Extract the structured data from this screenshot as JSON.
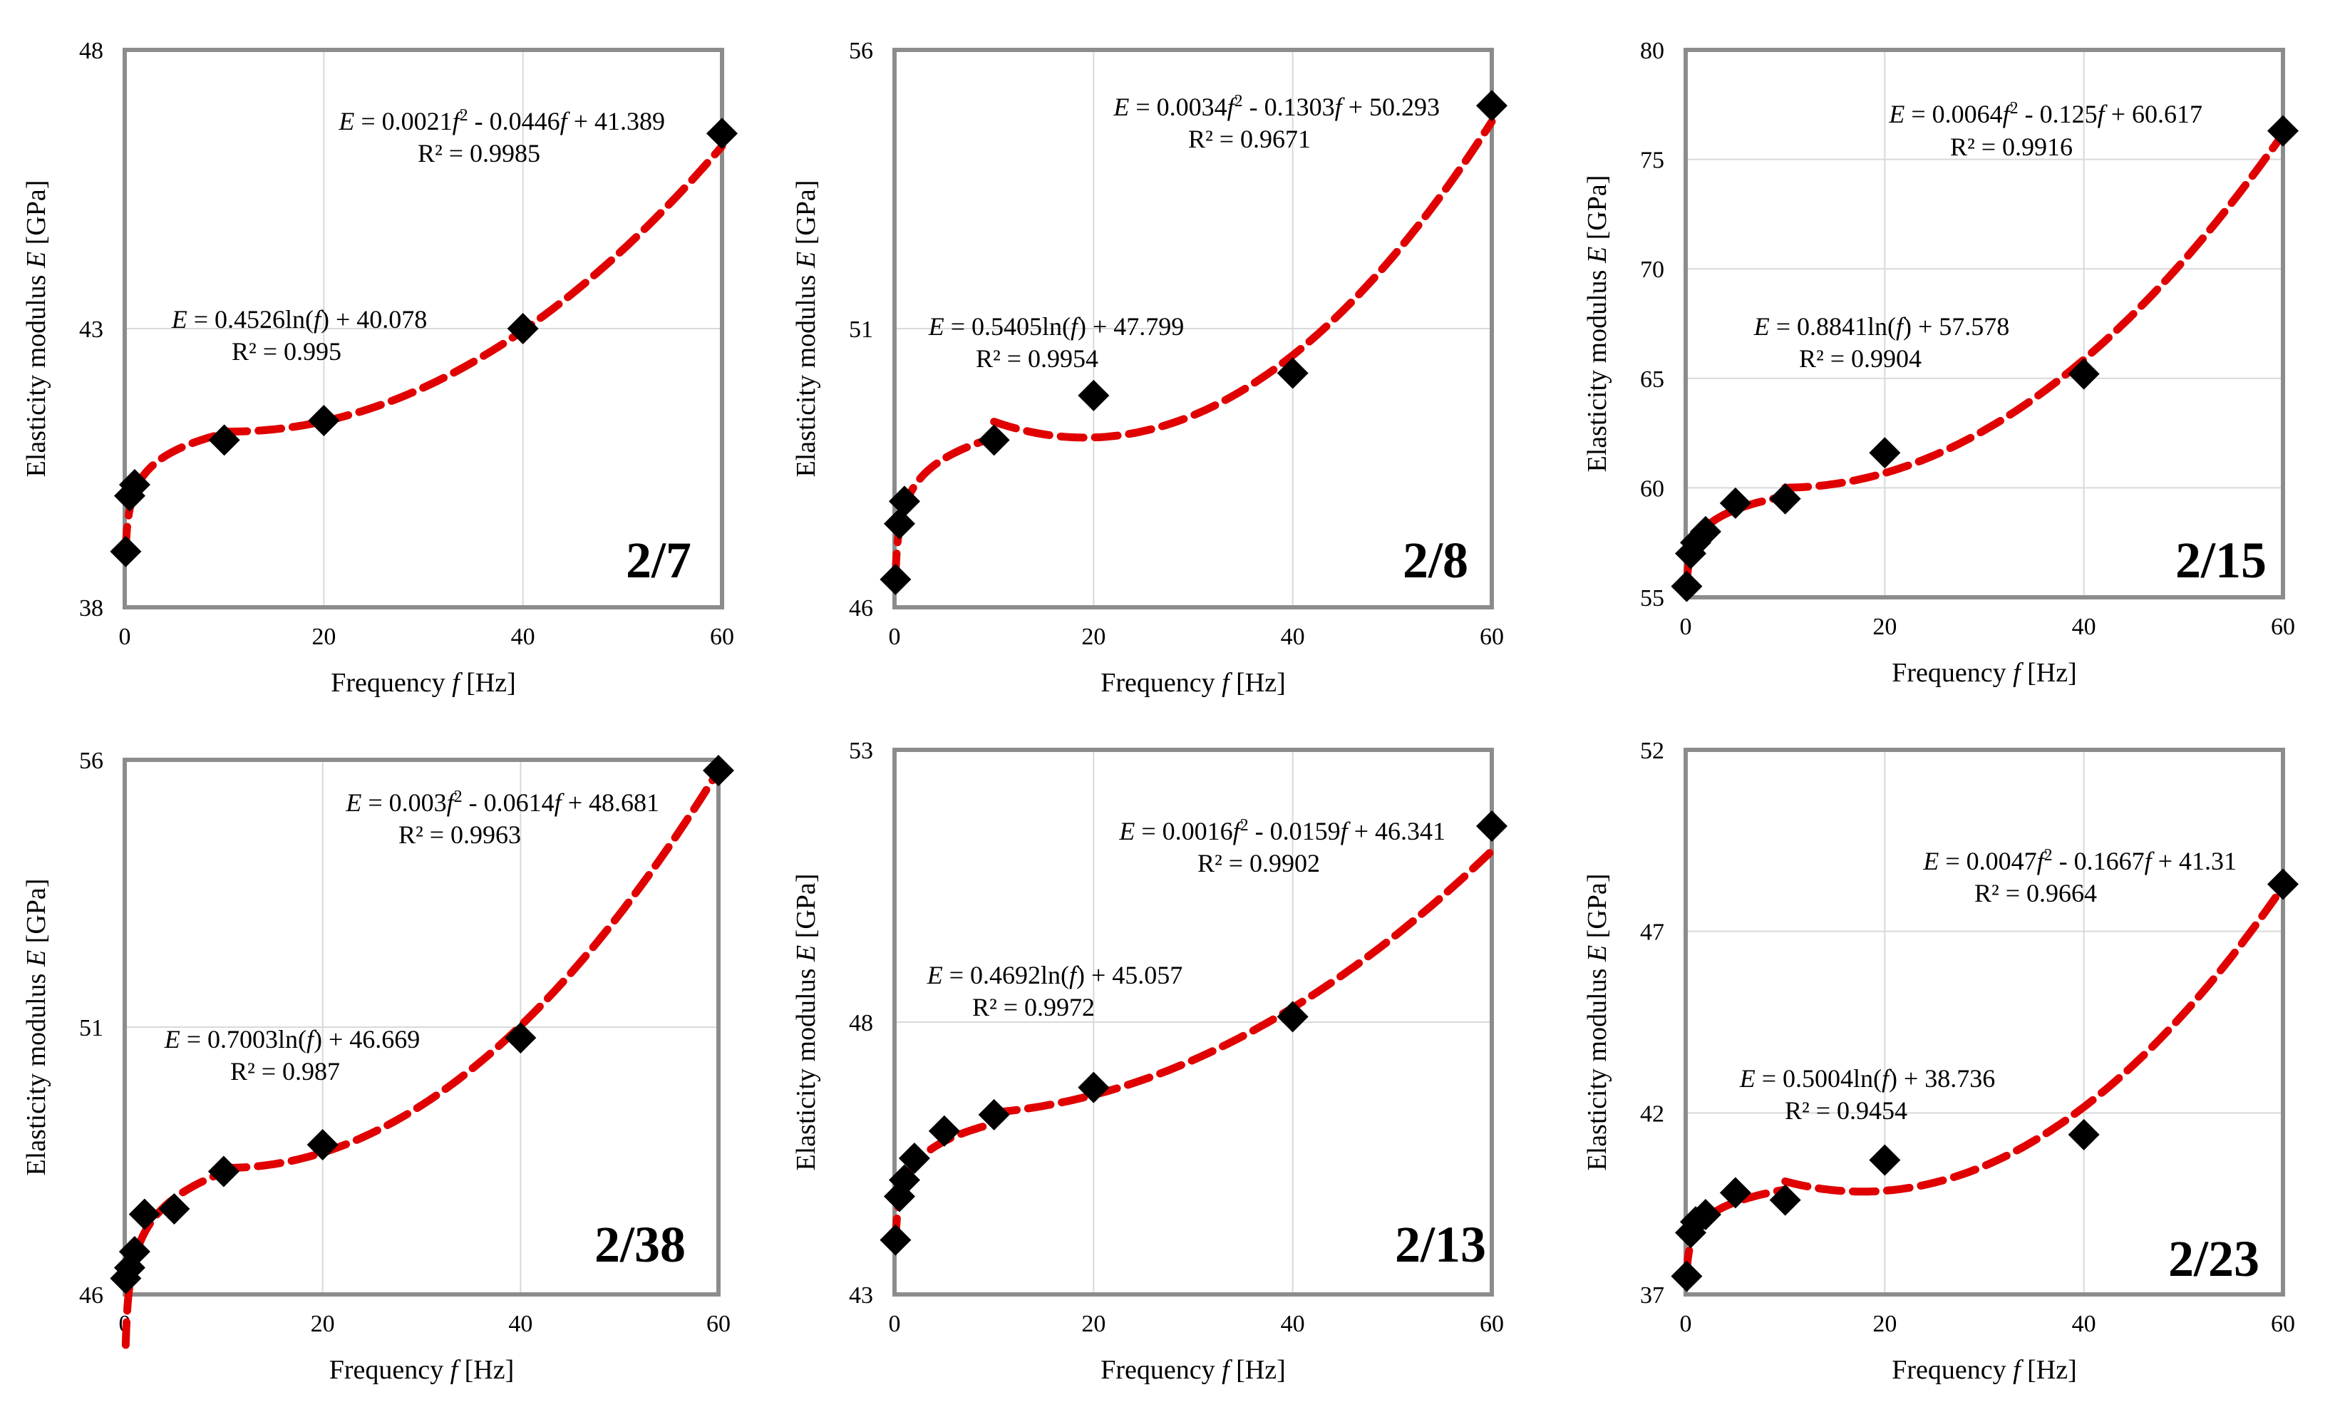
{
  "chart_data": [
    {
      "type": "scatter",
      "panel_label": "2/7",
      "xlabel_pre": "Frequency ",
      "xlabel_var": "f",
      "xlabel_post": " [Hz]",
      "ylabel_pre": "Elasticity modulus ",
      "ylabel_var": "E",
      "ylabel_post": " [GPa]",
      "xlim": [
        0,
        60
      ],
      "ylim": [
        38,
        48
      ],
      "xticks": [
        "0",
        "20",
        "40",
        "60"
      ],
      "yticks": [
        "38",
        "43",
        "48"
      ],
      "grid": true,
      "points": [
        [
          0.1,
          39.0
        ],
        [
          0.5,
          40.0
        ],
        [
          1,
          40.2
        ],
        [
          10,
          41.0
        ],
        [
          20,
          41.35
        ],
        [
          40,
          43.0
        ],
        [
          60,
          46.5
        ]
      ],
      "log_fit": {
        "a": 0.4526,
        "b": 40.078,
        "x_range": [
          0.1,
          10
        ],
        "eq_pre": " = 0.4526ln(",
        "eq_post": ") + 40.078",
        "r2": "R² = 0.995"
      },
      "poly_fit": {
        "a2": 0.0021,
        "a1": -0.0446,
        "a0": 41.389,
        "x_range": [
          10,
          60
        ],
        "eq_mid": " = 0.0021",
        "eq_sq": "2",
        "eq_lin": " - 0.0446",
        "eq_end": " + 41.389",
        "r2": "R² = 0.9985"
      },
      "marker_color": "#000000",
      "fit_color": "#e00000"
    },
    {
      "type": "scatter",
      "panel_label": "2/8",
      "xlabel_pre": "Frequency ",
      "xlabel_var": "f",
      "xlabel_post": " [Hz]",
      "ylabel_pre": "Elasticity modulus ",
      "ylabel_var": "E",
      "ylabel_post": " [GPa]",
      "xlim": [
        0,
        60
      ],
      "ylim": [
        46,
        56
      ],
      "xticks": [
        "0",
        "20",
        "40",
        "60"
      ],
      "yticks": [
        "46",
        "51",
        "56"
      ],
      "grid": true,
      "points": [
        [
          0.1,
          46.5
        ],
        [
          0.5,
          47.5
        ],
        [
          1,
          47.9
        ],
        [
          10,
          49.0
        ],
        [
          20,
          49.8
        ],
        [
          40,
          50.2
        ],
        [
          60,
          55.0
        ]
      ],
      "log_fit": {
        "a": 0.5405,
        "b": 47.799,
        "x_range": [
          0.1,
          10
        ],
        "eq_pre": " = 0.5405ln(",
        "eq_post": ") + 47.799",
        "r2": "R² = 0.9954"
      },
      "poly_fit": {
        "a2": 0.0034,
        "a1": -0.1303,
        "a0": 50.293,
        "x_range": [
          10,
          60
        ],
        "eq_mid": " = 0.0034",
        "eq_sq": "2",
        "eq_lin": " - 0.1303",
        "eq_end": " + 50.293",
        "r2": "R² = 0.9671"
      },
      "marker_color": "#000000",
      "fit_color": "#e00000"
    },
    {
      "type": "scatter",
      "panel_label": "2/15",
      "xlabel_pre": "Frequency ",
      "xlabel_var": "f",
      "xlabel_post": " [Hz]",
      "ylabel_pre": "Elasticity modulus ",
      "ylabel_var": "E",
      "ylabel_post": " [GPa]",
      "xlim": [
        0,
        60
      ],
      "ylim": [
        55,
        80
      ],
      "xticks": [
        "0",
        "20",
        "40",
        "60"
      ],
      "yticks": [
        "55",
        "60",
        "65",
        "70",
        "75",
        "80"
      ],
      "grid": true,
      "points": [
        [
          0.1,
          55.5
        ],
        [
          0.5,
          57.0
        ],
        [
          1,
          57.5
        ],
        [
          2,
          58.0
        ],
        [
          5,
          59.3
        ],
        [
          10,
          59.5
        ],
        [
          20,
          61.6
        ],
        [
          40,
          65.2
        ],
        [
          60,
          76.3
        ]
      ],
      "log_fit": {
        "a": 0.8841,
        "b": 57.578,
        "x_range": [
          0.1,
          10
        ],
        "eq_pre": " = 0.8841ln(",
        "eq_post": ") + 57.578",
        "r2": "R² = 0.9904"
      },
      "poly_fit": {
        "a2": 0.0064,
        "a1": -0.125,
        "a0": 60.617,
        "x_range": [
          10,
          60
        ],
        "eq_mid": " = 0.0064",
        "eq_sq": "2",
        "eq_lin": " - 0.125",
        "eq_end": " + 60.617",
        "r2": "R² = 0.9916"
      },
      "marker_color": "#000000",
      "fit_color": "#e00000"
    },
    {
      "type": "scatter",
      "panel_label": "2/38",
      "xlabel_pre": "Frequency ",
      "xlabel_var": "f",
      "xlabel_post": " [Hz]",
      "ylabel_pre": "Elasticity modulus ",
      "ylabel_var": "E",
      "ylabel_post": " [GPa]",
      "xlim": [
        0,
        60
      ],
      "ylim": [
        46,
        56
      ],
      "xticks": [
        "0",
        "20",
        "40",
        "60"
      ],
      "yticks": [
        "46",
        "51",
        "56"
      ],
      "grid": true,
      "points": [
        [
          0.1,
          46.3
        ],
        [
          0.5,
          46.5
        ],
        [
          1,
          46.8
        ],
        [
          2,
          47.5
        ],
        [
          5,
          47.6
        ],
        [
          10,
          48.3
        ],
        [
          20,
          48.8
        ],
        [
          40,
          50.8
        ],
        [
          60,
          55.8
        ]
      ],
      "log_fit": {
        "a": 0.7003,
        "b": 46.669,
        "x_range": [
          0.1,
          10
        ],
        "eq_pre": " = 0.7003ln(",
        "eq_post": ") + 46.669",
        "r2": "R² = 0.987"
      },
      "poly_fit": {
        "a2": 0.003,
        "a1": -0.0614,
        "a0": 48.681,
        "x_range": [
          10,
          60
        ],
        "eq_mid": " = 0.003",
        "eq_sq": "2",
        "eq_lin": " - 0.0614",
        "eq_end": " + 48.681",
        "r2": "R² = 0.9963"
      },
      "marker_color": "#000000",
      "fit_color": "#e00000"
    },
    {
      "type": "scatter",
      "panel_label": "2/13",
      "xlabel_pre": "Frequency ",
      "xlabel_var": "f",
      "xlabel_post": " [Hz]",
      "ylabel_pre": "Elasticity modulus ",
      "ylabel_var": "E",
      "ylabel_post": " [GPa]",
      "xlim": [
        0,
        60
      ],
      "ylim": [
        43,
        53
      ],
      "xticks": [
        "0",
        "20",
        "40",
        "60"
      ],
      "yticks": [
        "43",
        "48",
        "53"
      ],
      "grid": true,
      "points": [
        [
          0.1,
          44.0
        ],
        [
          0.5,
          44.8
        ],
        [
          1,
          45.1
        ],
        [
          2,
          45.5
        ],
        [
          5,
          46.0
        ],
        [
          10,
          46.3
        ],
        [
          20,
          46.8
        ],
        [
          40,
          48.1
        ],
        [
          60,
          51.6
        ]
      ],
      "log_fit": {
        "a": 0.4692,
        "b": 45.057,
        "x_range": [
          0.1,
          10
        ],
        "eq_pre": " = 0.4692ln(",
        "eq_post": ") + 45.057",
        "r2": "R² = 0.9972"
      },
      "poly_fit": {
        "a2": 0.0016,
        "a1": -0.0159,
        "a0": 46.341,
        "x_range": [
          10,
          60
        ],
        "eq_mid": " = 0.0016",
        "eq_sq": "2",
        "eq_lin": " - 0.0159",
        "eq_end": " + 46.341",
        "r2": "R² = 0.9902"
      },
      "marker_color": "#000000",
      "fit_color": "#e00000"
    },
    {
      "type": "scatter",
      "panel_label": "2/23",
      "xlabel_pre": "Frequency ",
      "xlabel_var": "f",
      "xlabel_post": " [Hz]",
      "ylabel_pre": "Elasticity modulus ",
      "ylabel_var": "E",
      "ylabel_post": " [GPa]",
      "xlim": [
        0,
        60
      ],
      "ylim": [
        37,
        52
      ],
      "xticks": [
        "0",
        "20",
        "40",
        "60"
      ],
      "yticks": [
        "37",
        "42",
        "47",
        "52"
      ],
      "grid": true,
      "points": [
        [
          0.1,
          37.5
        ],
        [
          0.5,
          38.7
        ],
        [
          1,
          39.0
        ],
        [
          2,
          39.2
        ],
        [
          5,
          39.8
        ],
        [
          10,
          39.6
        ],
        [
          20,
          40.7
        ],
        [
          40,
          41.4
        ],
        [
          60,
          48.3
        ]
      ],
      "log_fit": {
        "a": 0.5004,
        "b": 38.736,
        "x_range": [
          0.1,
          10
        ],
        "eq_pre": " = 0.5004ln(",
        "eq_post": ") + 38.736",
        "r2": "R² = 0.9454"
      },
      "poly_fit": {
        "a2": 0.0047,
        "a1": -0.1667,
        "a0": 41.31,
        "x_range": [
          10,
          60
        ],
        "eq_mid": " = 0.0047",
        "eq_sq": "2",
        "eq_lin": " - 0.1667",
        "eq_end": " + 41.31",
        "r2": "R² = 0.9664"
      },
      "marker_color": "#000000",
      "fit_color": "#e00000"
    }
  ]
}
